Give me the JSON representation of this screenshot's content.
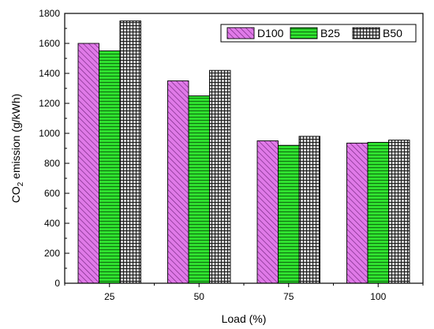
{
  "chart_data": {
    "type": "bar",
    "categories": [
      "25",
      "50",
      "75",
      "100"
    ],
    "series": [
      {
        "name": "D100",
        "values": [
          1600,
          1350,
          950,
          935
        ],
        "color": "#d966e6",
        "pattern": "diagonal-hatch"
      },
      {
        "name": "B25",
        "values": [
          1550,
          1250,
          920,
          940
        ],
        "color": "#22dd22",
        "pattern": "horizontal-lines"
      },
      {
        "name": "B50",
        "values": [
          1750,
          1420,
          980,
          955
        ],
        "color": "#555555",
        "pattern": "crosshatch"
      }
    ],
    "xlabel": "Load (%)",
    "ylabel_main": "CO",
    "ylabel_sub": "2",
    "ylabel_rest": " emission (g/kWh)",
    "ylim": [
      0,
      1800
    ],
    "yticks": [
      "0",
      "200",
      "400",
      "600",
      "800",
      "1000",
      "1200",
      "1400",
      "1600",
      "1800"
    ],
    "legend_placement": "top-right",
    "grid": false
  }
}
